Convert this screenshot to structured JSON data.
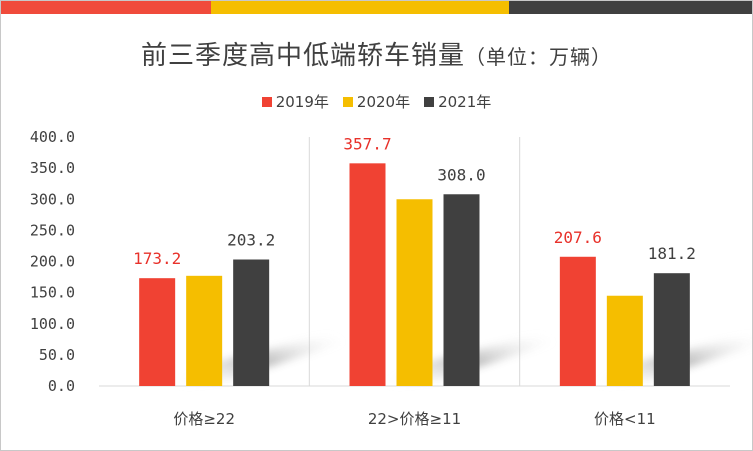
{
  "header": {
    "stripe_colors": [
      "#F04B3B",
      "#F5BE00",
      "#404040"
    ]
  },
  "chart_data": {
    "type": "bar",
    "title": "前三季度高中低端轿车销量",
    "subtitle": "（单位：万辆）",
    "categories": [
      "价格≥22",
      "22>价格≥11",
      "价格<11"
    ],
    "series": [
      {
        "name": "2019年",
        "color": "#F04233",
        "values": [
          173.2,
          357.7,
          207.6
        ]
      },
      {
        "name": "2020年",
        "color": "#F5BE00",
        "values": [
          177.0,
          300.0,
          145.0
        ]
      },
      {
        "name": "2021年",
        "color": "#404040",
        "values": [
          203.2,
          308.0,
          181.2
        ]
      }
    ],
    "data_labels": [
      {
        "text": "173.2",
        "series": 0,
        "category": 0,
        "color": "#E8312A"
      },
      {
        "text": "203.2",
        "series": 2,
        "category": 0,
        "color": "#404040"
      },
      {
        "text": "357.7",
        "series": 0,
        "category": 1,
        "color": "#E8312A"
      },
      {
        "text": "308.0",
        "series": 2,
        "category": 1,
        "color": "#404040"
      },
      {
        "text": "207.6",
        "series": 0,
        "category": 2,
        "color": "#E8312A"
      },
      {
        "text": "181.2",
        "series": 2,
        "category": 2,
        "color": "#404040"
      }
    ],
    "yticks": [
      "0.0",
      "50.0",
      "100.0",
      "150.0",
      "200.0",
      "250.0",
      "300.0",
      "350.0",
      "400.0"
    ],
    "ylim": [
      0,
      400
    ],
    "grid": "vertical category separators",
    "legend": "top-center"
  }
}
